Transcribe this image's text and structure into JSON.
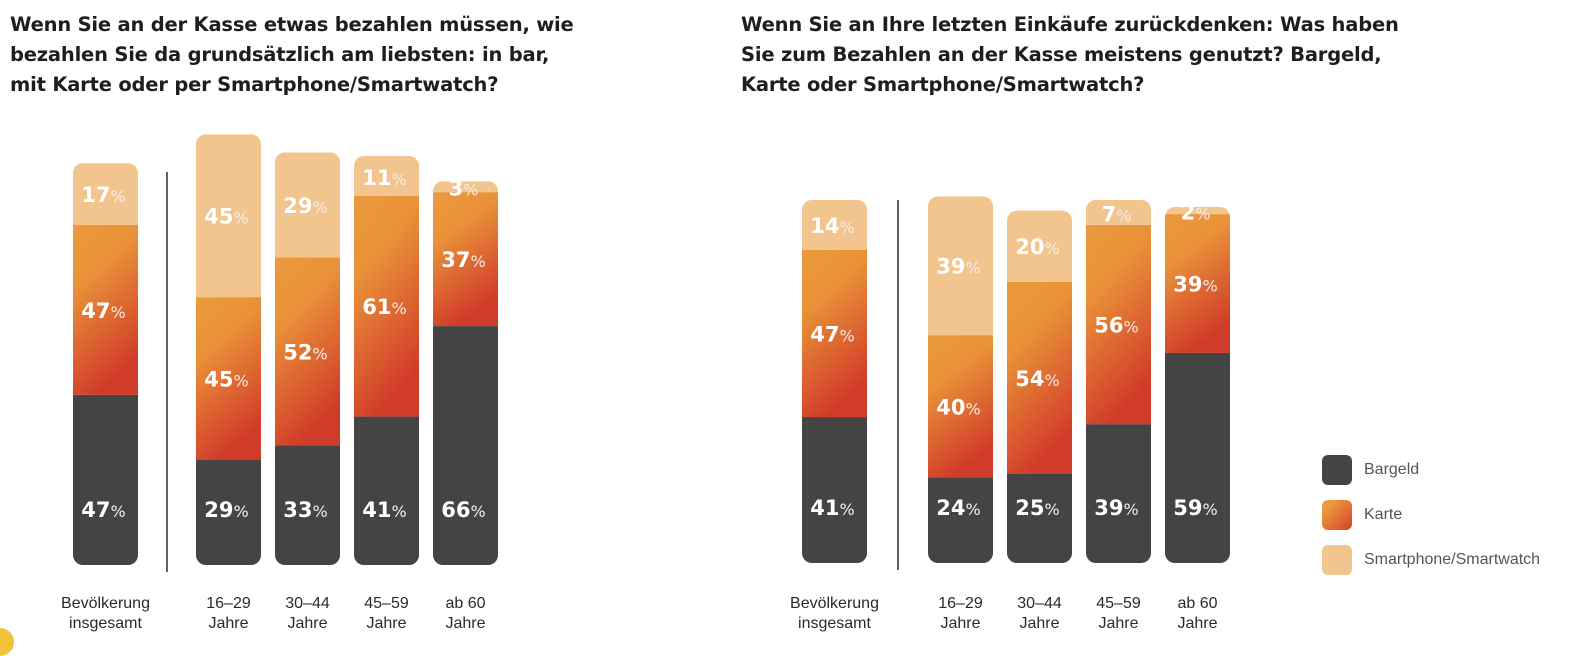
{
  "chart_data": [
    {
      "type": "bar",
      "stacked": true,
      "title": "Wenn Sie an der Kasse etwas bezahlen müssen, wie bezahlen Sie da grundsätzlich am liebsten: in bar, mit Karte oder per Smartphone/Smartwatch?",
      "categories": [
        [
          "Bevölkerung",
          "insgesamt"
        ],
        [
          "16–29",
          "Jahre"
        ],
        [
          "30–44",
          "Jahre"
        ],
        [
          "45–59",
          "Jahre"
        ],
        [
          "ab 60",
          "Jahre"
        ]
      ],
      "series": [
        {
          "name": "Bargeld",
          "values": [
            47,
            29,
            33,
            41,
            66
          ]
        },
        {
          "name": "Karte",
          "values": [
            47,
            45,
            52,
            61,
            37
          ]
        },
        {
          "name": "Smartphone/Smartwatch",
          "values": [
            17,
            45,
            29,
            11,
            3
          ]
        }
      ],
      "unit": "%",
      "xlabel": "",
      "ylabel": "",
      "grid": false,
      "separator_after_category": 0
    },
    {
      "type": "bar",
      "stacked": true,
      "title": "Wenn Sie an Ihre letzten Einkäufe zurückdenken: Was haben Sie zum Bezahlen an der Kasse meistens genutzt? Bargeld, Karte oder Smartphone/Smartwatch?",
      "categories": [
        [
          "Bevölkerung",
          "insgesamt"
        ],
        [
          "16–29",
          "Jahre"
        ],
        [
          "30–44",
          "Jahre"
        ],
        [
          "45–59",
          "Jahre"
        ],
        [
          "ab 60",
          "Jahre"
        ]
      ],
      "series": [
        {
          "name": "Bargeld",
          "values": [
            41,
            24,
            25,
            39,
            59
          ]
        },
        {
          "name": "Karte",
          "values": [
            47,
            40,
            54,
            56,
            39
          ]
        },
        {
          "name": "Smartphone/Smartwatch",
          "values": [
            14,
            39,
            20,
            7,
            2
          ]
        }
      ],
      "unit": "%",
      "xlabel": "",
      "ylabel": "",
      "grid": false,
      "separator_after_category": 0
    }
  ],
  "titles": {
    "left_lines": [
      "Wenn Sie an der Kasse etwas bezahlen müssen, wie",
      "bezahlen Sie da grundsätzlich am liebsten: in bar,",
      "mit Karte oder per Smartphone/Smartwatch?"
    ],
    "right_lines": [
      "Wenn Sie an Ihre letzten Einkäufe zurückdenken: Was haben",
      "Sie zum Bezahlen an der Kasse meistens genutzt? Bargeld,",
      "Karte oder Smartphone/Smartwatch?"
    ]
  },
  "legend": {
    "placement": "bottom-right",
    "items": [
      {
        "label": "Bargeld",
        "color": "#444445"
      },
      {
        "label": "Karte",
        "color": "#e0632f"
      },
      {
        "label": "Smartphone/Smartwatch",
        "color": "#f3c58e"
      }
    ]
  },
  "colors": {
    "bargeld": "#444445",
    "karte_top": "#eb9a3e",
    "karte_bottom": "#d4422b",
    "smartphone": "#f3c58e",
    "separator": "#3a3a3a"
  }
}
